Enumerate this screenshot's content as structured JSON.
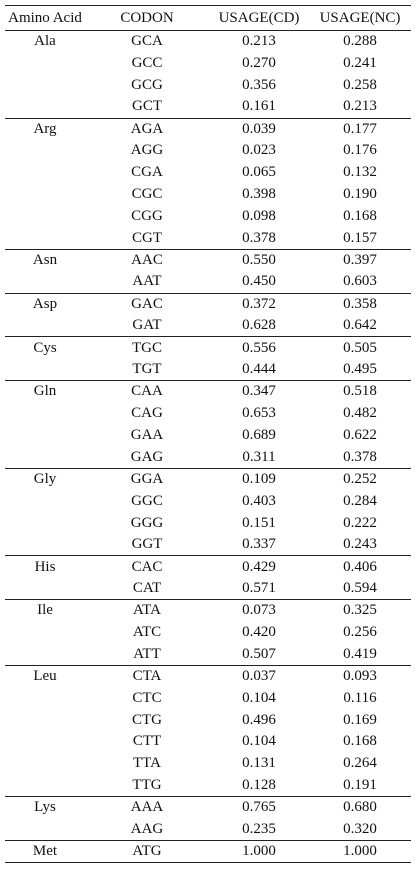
{
  "table": {
    "header": [
      "Amino Acid",
      "CODON",
      "USAGE(CD)",
      "USAGE(NC)"
    ],
    "groups": [
      {
        "amino_acid": "Ala",
        "rows": [
          [
            "GCA",
            "0.213",
            "0.288"
          ],
          [
            "GCC",
            "0.270",
            "0.241"
          ],
          [
            "GCG",
            "0.356",
            "0.258"
          ],
          [
            "GCT",
            "0.161",
            "0.213"
          ]
        ]
      },
      {
        "amino_acid": "Arg",
        "rows": [
          [
            "AGA",
            "0.039",
            "0.177"
          ],
          [
            "AGG",
            "0.023",
            "0.176"
          ],
          [
            "CGA",
            "0.065",
            "0.132"
          ],
          [
            "CGC",
            "0.398",
            "0.190"
          ],
          [
            "CGG",
            "0.098",
            "0.168"
          ],
          [
            "CGT",
            "0.378",
            "0.157"
          ]
        ]
      },
      {
        "amino_acid": "Asn",
        "rows": [
          [
            "AAC",
            "0.550",
            "0.397"
          ],
          [
            "AAT",
            "0.450",
            "0.603"
          ]
        ]
      },
      {
        "amino_acid": "Asp",
        "rows": [
          [
            "GAC",
            "0.372",
            "0.358"
          ],
          [
            "GAT",
            "0.628",
            "0.642"
          ]
        ]
      },
      {
        "amino_acid": "Cys",
        "rows": [
          [
            "TGC",
            "0.556",
            "0.505"
          ],
          [
            "TGT",
            "0.444",
            "0.495"
          ]
        ]
      },
      {
        "amino_acid": "Gln",
        "rows": [
          [
            "CAA",
            "0.347",
            "0.518"
          ],
          [
            "CAG",
            "0.653",
            "0.482"
          ],
          [
            "GAA",
            "0.689",
            "0.622"
          ],
          [
            "GAG",
            "0.311",
            "0.378"
          ]
        ]
      },
      {
        "amino_acid": "Gly",
        "rows": [
          [
            "GGA",
            "0.109",
            "0.252"
          ],
          [
            "GGC",
            "0.403",
            "0.284"
          ],
          [
            "GGG",
            "0.151",
            "0.222"
          ],
          [
            "GGT",
            "0.337",
            "0.243"
          ]
        ]
      },
      {
        "amino_acid": "His",
        "rows": [
          [
            "CAC",
            "0.429",
            "0.406"
          ],
          [
            "CAT",
            "0.571",
            "0.594"
          ]
        ]
      },
      {
        "amino_acid": "Ile",
        "rows": [
          [
            "ATA",
            "0.073",
            "0.325"
          ],
          [
            "ATC",
            "0.420",
            "0.256"
          ],
          [
            "ATT",
            "0.507",
            "0.419"
          ]
        ]
      },
      {
        "amino_acid": "Leu",
        "rows": [
          [
            "CTA",
            "0.037",
            "0.093"
          ],
          [
            "CTC",
            "0.104",
            "0.116"
          ],
          [
            "CTG",
            "0.496",
            "0.169"
          ],
          [
            "CTT",
            "0.104",
            "0.168"
          ],
          [
            "TTA",
            "0.131",
            "0.264"
          ],
          [
            "TTG",
            "0.128",
            "0.191"
          ]
        ]
      },
      {
        "amino_acid": "Lys",
        "rows": [
          [
            "AAA",
            "0.765",
            "0.680"
          ],
          [
            "AAG",
            "0.235",
            "0.320"
          ]
        ]
      },
      {
        "amino_acid": "Met",
        "rows": [
          [
            "ATG",
            "1.000",
            "1.000"
          ]
        ]
      }
    ]
  }
}
